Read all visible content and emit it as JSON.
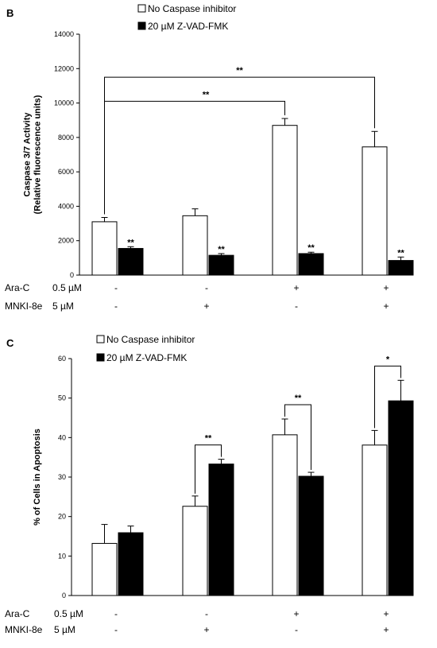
{
  "panels": [
    {
      "letter": "B",
      "legend": [
        "No Caspase inhibitor",
        "20 µM Z-VAD-FMK"
      ],
      "ylabel_lines": [
        "Caspase 3/7 Activity",
        "(Relative fluorescence units)"
      ],
      "conditions": [
        {
          "name": "Ara-C",
          "dose": "0.5 µM",
          "marks": [
            "-",
            "-",
            "+",
            "+"
          ]
        },
        {
          "name": "MNKI-8e",
          "dose": "5 µM",
          "marks": [
            "-",
            "+",
            "-",
            "+"
          ]
        }
      ],
      "significance": {
        "bar_marks": [
          "**",
          "**",
          "**",
          "**"
        ],
        "brackets": [
          {
            "from": 0,
            "to": 2,
            "label": "**"
          },
          {
            "from": 0,
            "to": 3,
            "label": "**"
          }
        ]
      }
    },
    {
      "letter": "C",
      "legend": [
        "No Caspase inhibitor",
        "20 µM Z-VAD-FMK"
      ],
      "ylabel_lines": [
        "% of Cells in Apoptosis"
      ],
      "conditions": [
        {
          "name": "Ara-C",
          "dose": "0.5 µM",
          "marks": [
            "-",
            "-",
            "+",
            "+"
          ]
        },
        {
          "name": "MNKI-8e",
          "dose": "5 µM",
          "marks": [
            "-",
            "+",
            "-",
            "+"
          ]
        }
      ],
      "significance": {
        "pair_brackets": [
          {
            "group": 1,
            "label": "**"
          },
          {
            "group": 2,
            "label": "**"
          },
          {
            "group": 3,
            "label": "*"
          }
        ]
      }
    }
  ],
  "chart_data": [
    {
      "type": "bar",
      "title": "",
      "xlabel": "",
      "ylabel": "Caspase 3/7 Activity (Relative fluorescence units)",
      "ylim": [
        0,
        14000
      ],
      "yticks": [
        0,
        2000,
        4000,
        6000,
        8000,
        10000,
        12000,
        14000
      ],
      "categories": [
        "-/-",
        "-/+",
        "+/-",
        "+/+"
      ],
      "series": [
        {
          "name": "No Caspase inhibitor",
          "color": "#ffffff",
          "values": [
            3100,
            3450,
            8700,
            7450
          ],
          "errors": [
            250,
            400,
            400,
            900
          ]
        },
        {
          "name": "20 µM Z-VAD-FMK",
          "color": "#000000",
          "values": [
            1550,
            1150,
            1250,
            850
          ],
          "errors": [
            100,
            100,
            80,
            200
          ]
        }
      ],
      "grid": false,
      "legend_position": "top-left"
    },
    {
      "type": "bar",
      "title": "",
      "xlabel": "",
      "ylabel": "% of Cells in Apoptosis",
      "ylim": [
        0,
        60
      ],
      "yticks": [
        0,
        10,
        20,
        30,
        40,
        50,
        60
      ],
      "categories": [
        "-/-",
        "-/+",
        "+/-",
        "+/+"
      ],
      "series": [
        {
          "name": "No Caspase inhibitor",
          "color": "#ffffff",
          "values": [
            13.2,
            22.6,
            40.7,
            38.1
          ],
          "errors": [
            4.8,
            2.6,
            4.0,
            3.7
          ]
        },
        {
          "name": "20 µM Z-VAD-FMK",
          "color": "#000000",
          "values": [
            15.9,
            33.3,
            30.2,
            49.3
          ],
          "errors": [
            1.7,
            1.2,
            1.0,
            5.2
          ]
        }
      ],
      "grid": false,
      "legend_position": "top-left"
    }
  ]
}
